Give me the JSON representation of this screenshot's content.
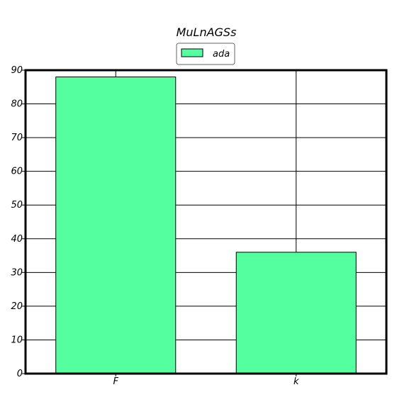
{
  "chart_data": {
    "type": "bar",
    "title": "MuLnAGSs",
    "xlabel": "",
    "ylabel": "",
    "categories": [
      "F",
      "k"
    ],
    "series": [
      {
        "name": "ada",
        "values": [
          88,
          36
        ],
        "color": "#54ff9f"
      }
    ],
    "ylim": [
      0,
      90
    ],
    "yticks": [
      0,
      10,
      20,
      30,
      40,
      50,
      60,
      70,
      80,
      90
    ],
    "grid": true,
    "legend_position": "top-center"
  }
}
